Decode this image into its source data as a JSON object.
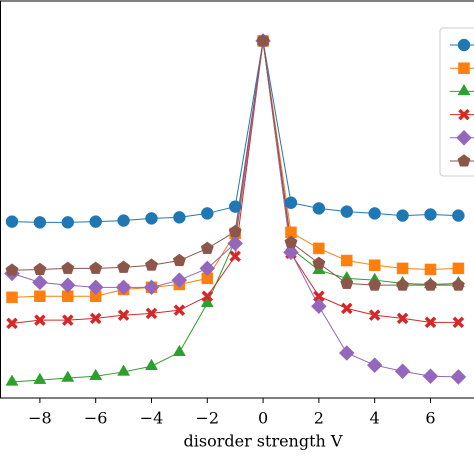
{
  "chart_data": {
    "type": "line",
    "x_label": "disorder strength V",
    "x": [
      -9,
      -8,
      -7,
      -6,
      -5,
      -4,
      -3,
      -2,
      -1,
      0,
      1,
      2,
      3,
      4,
      5,
      6,
      7
    ],
    "xlim": [
      -9.43,
      7.56
    ],
    "xticks": [
      {
        "value": -8,
        "label": "−8"
      },
      {
        "value": -6,
        "label": "−6"
      },
      {
        "value": -4,
        "label": "−4"
      },
      {
        "value": -2,
        "label": "−2"
      },
      0,
      2,
      4,
      6
    ],
    "ylim": [
      0,
      1.112
    ],
    "legend": "upper right",
    "series": [
      {
        "color": "#1f77b4",
        "marker": "circle",
        "values": [
          0.494,
          0.492,
          0.492,
          0.494,
          0.497,
          0.503,
          0.506,
          0.517,
          0.536,
          1.0,
          0.547,
          0.531,
          0.522,
          0.517,
          0.511,
          0.514,
          0.511
        ]
      },
      {
        "color": "#ff7f0e",
        "marker": "square",
        "values": [
          0.282,
          0.285,
          0.285,
          0.285,
          0.304,
          0.31,
          0.318,
          0.335,
          0.461,
          1.0,
          0.464,
          0.419,
          0.385,
          0.372,
          0.363,
          0.36,
          0.363
        ]
      },
      {
        "color": "#2ca02c",
        "marker": "triangle",
        "values": [
          0.045,
          0.05,
          0.056,
          0.061,
          0.073,
          0.089,
          0.128,
          0.265,
          0.441,
          1.0,
          0.419,
          0.358,
          0.335,
          0.33,
          0.321,
          0.318,
          0.321
        ]
      },
      {
        "color": "#d62728",
        "marker": "x",
        "values": [
          0.209,
          0.218,
          0.218,
          0.223,
          0.232,
          0.237,
          0.246,
          0.285,
          0.397,
          1.0,
          0.405,
          0.285,
          0.251,
          0.232,
          0.223,
          0.212,
          0.212
        ]
      },
      {
        "color": "#9467bd",
        "marker": "diamond",
        "values": [
          0.349,
          0.324,
          0.316,
          0.31,
          0.31,
          0.31,
          0.33,
          0.363,
          0.433,
          1.0,
          0.408,
          0.257,
          0.126,
          0.092,
          0.075,
          0.061,
          0.059
        ]
      },
      {
        "color": "#8c564b",
        "marker": "pentagon",
        "values": [
          0.358,
          0.36,
          0.363,
          0.363,
          0.366,
          0.372,
          0.385,
          0.419,
          0.466,
          1.0,
          0.436,
          0.377,
          0.321,
          0.316,
          0.316,
          0.316,
          0.316
        ]
      }
    ]
  }
}
